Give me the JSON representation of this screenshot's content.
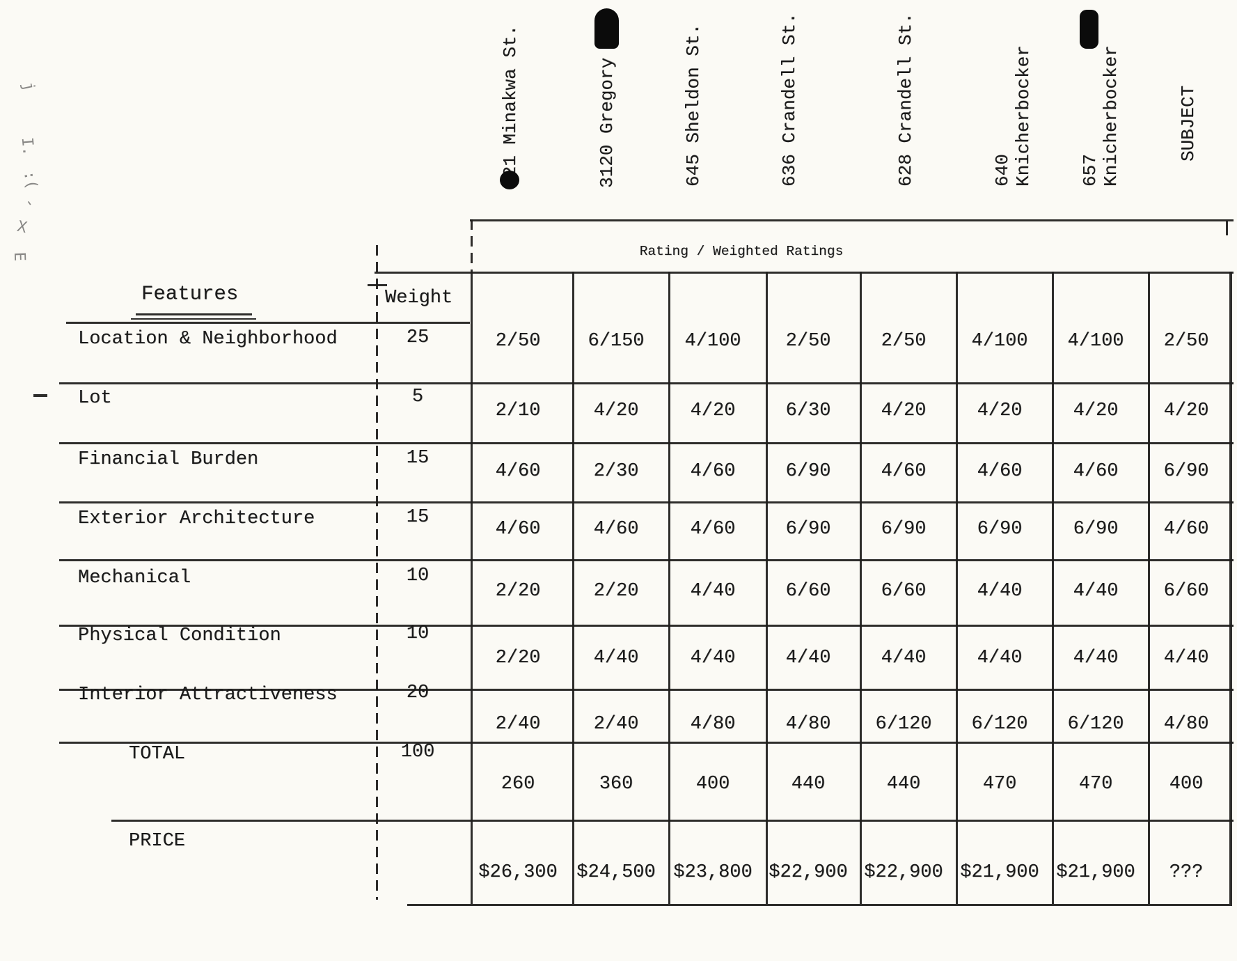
{
  "page": {
    "banner_title": "Rating / Weighted Ratings",
    "features_header": "Features",
    "weight_header": "Weight",
    "columns": [
      "821 Minakwa St.",
      "3120 Gregory",
      "645 Sheldon St.",
      "636 Crandell St.",
      "628 Crandell St.",
      "640 Knicherbocker",
      "657 Knicherbocker",
      "SUBJECT"
    ],
    "rows": [
      {
        "feature": "Location & Neighborhood",
        "weight": "25",
        "values": [
          "2/50",
          "6/150",
          "4/100",
          "2/50",
          "2/50",
          "4/100",
          "4/100",
          "2/50"
        ]
      },
      {
        "feature": "Lot",
        "weight": "5",
        "values": [
          "2/10",
          "4/20",
          "4/20",
          "6/30",
          "4/20",
          "4/20",
          "4/20",
          "4/20"
        ]
      },
      {
        "feature": "Financial Burden",
        "weight": "15",
        "values": [
          "4/60",
          "2/30",
          "4/60",
          "6/90",
          "4/60",
          "4/60",
          "4/60",
          "6/90"
        ]
      },
      {
        "feature": "Exterior Architecture",
        "weight": "15",
        "values": [
          "4/60",
          "4/60",
          "4/60",
          "6/90",
          "6/90",
          "6/90",
          "6/90",
          "4/60"
        ]
      },
      {
        "feature": "Mechanical",
        "weight": "10",
        "values": [
          "2/20",
          "2/20",
          "4/40",
          "6/60",
          "6/60",
          "4/40",
          "4/40",
          "6/60"
        ]
      },
      {
        "feature": "Physical Condition",
        "weight": "10",
        "values": [
          "2/20",
          "4/40",
          "4/40",
          "4/40",
          "4/40",
          "4/40",
          "4/40",
          "4/40"
        ]
      },
      {
        "feature": "Interior Attractiveness",
        "weight": "20",
        "values": [
          "2/40",
          "2/40",
          "4/80",
          "4/80",
          "6/120",
          "6/120",
          "6/120",
          "4/80"
        ]
      }
    ],
    "total": {
      "label": "TOTAL",
      "weight": "100",
      "values": [
        "260",
        "360",
        "400",
        "440",
        "440",
        "470",
        "470",
        "400"
      ]
    },
    "price": {
      "label": "PRICE",
      "values": [
        "$26,300",
        "$24,500",
        "$23,800",
        "$22,900",
        "$22,900",
        "$21,900",
        "$21,900",
        "???"
      ]
    },
    "margin_marks": [
      "j",
      "I.",
      ":(",
      "-",
      "X",
      "E"
    ]
  }
}
